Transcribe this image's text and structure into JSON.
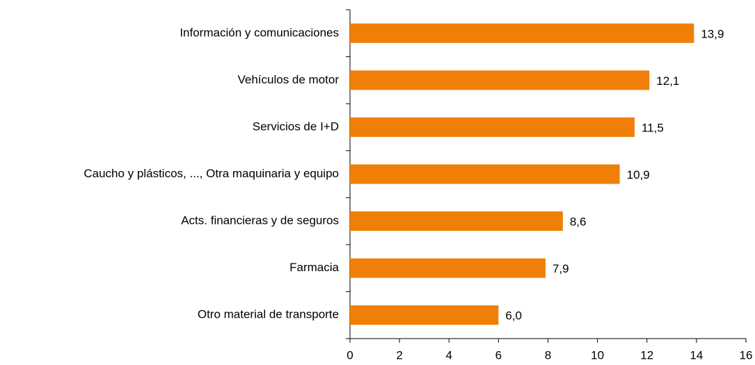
{
  "chart_data": {
    "type": "bar",
    "orientation": "horizontal",
    "categories": [
      "Información y comunicaciones",
      "Vehículos de motor",
      "Servicios de I+D",
      "Caucho y plásticos, ..., Otra maquinaria y equipo",
      "Acts. financieras y de seguros",
      "Farmacia",
      "Otro material de transporte"
    ],
    "values": [
      13.9,
      12.1,
      11.5,
      10.9,
      8.6,
      7.9,
      6.0
    ],
    "value_labels": [
      "13,9",
      "12,1",
      "11,5",
      "10,9",
      "8,6",
      "7,9",
      "6,0"
    ],
    "color": "#f07f09",
    "xlim": [
      0,
      16
    ],
    "xticks": [
      0,
      2,
      4,
      6,
      8,
      10,
      12,
      14,
      16
    ],
    "grid": false
  }
}
